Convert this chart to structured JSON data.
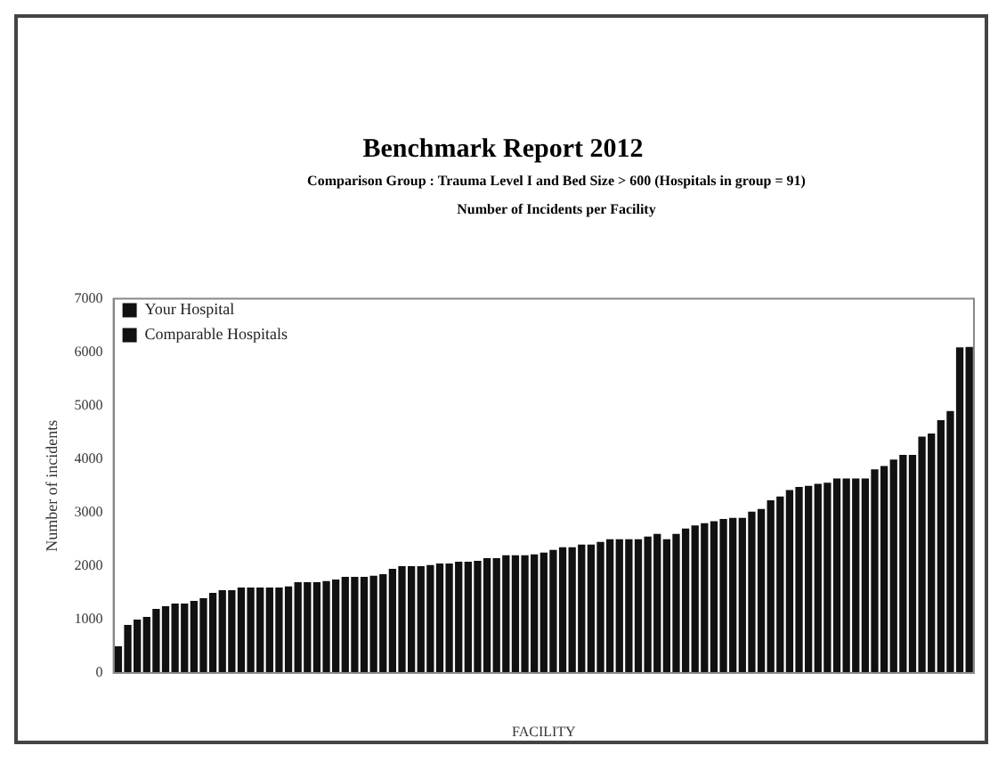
{
  "chart_data": {
    "type": "bar",
    "title": "Benchmark Report 2012",
    "subtitle": "Comparison Group :  Trauma Level I and Bed Size > 600 (Hospitals in group = 91)",
    "annotations": [
      "Number of Incidents per Facility"
    ],
    "xlabel": "FACILITY",
    "ylabel": "Number of incidents",
    "categories": [
      null,
      null,
      null,
      null,
      null,
      null,
      null,
      null,
      null,
      null,
      null,
      null,
      null,
      null,
      null,
      null,
      null,
      null,
      null,
      null,
      null,
      null,
      null,
      null,
      null,
      null,
      null,
      null,
      null,
      null,
      null,
      null,
      null,
      null,
      null,
      null,
      null,
      null,
      null,
      null,
      null,
      null,
      null,
      null,
      null,
      null,
      null,
      null,
      null,
      null,
      null,
      null,
      null,
      null,
      null,
      null,
      null,
      null,
      null,
      null,
      null,
      null,
      null,
      null,
      null,
      null,
      null,
      null,
      null,
      null,
      null,
      null,
      null,
      null,
      null,
      null,
      null,
      null,
      null,
      null,
      null,
      null,
      null,
      null,
      null,
      null,
      null,
      null,
      null,
      null,
      null
    ],
    "series": [
      {
        "name": "Your Hospital",
        "color": "#111111",
        "values": [
          null,
          null,
          null,
          null,
          null,
          null,
          null,
          null,
          null,
          null,
          null,
          null,
          null,
          null,
          null,
          null,
          null,
          null,
          null,
          null,
          null,
          null,
          null,
          null,
          null,
          null,
          null,
          null,
          null,
          null,
          null,
          2000,
          null,
          null,
          null,
          null,
          null,
          null,
          null,
          null,
          null,
          null,
          null,
          null,
          null,
          null,
          null,
          null,
          null,
          null,
          null,
          null,
          null,
          null,
          null,
          null,
          null,
          null,
          null,
          null,
          null,
          null,
          null,
          null,
          null,
          null,
          null,
          null,
          null,
          null,
          null,
          null,
          null,
          null,
          null,
          null,
          null,
          null,
          null,
          null,
          null,
          null,
          null,
          null,
          null,
          null,
          null,
          null,
          null,
          null,
          null
        ]
      },
      {
        "name": "Comparable Hospitals",
        "color": "#111111",
        "values": [
          500,
          900,
          1000,
          1050,
          1200,
          1250,
          1300,
          1300,
          1350,
          1400,
          1500,
          1550,
          1550,
          1600,
          1600,
          1600,
          1600,
          1600,
          1620,
          1700,
          1700,
          1700,
          1720,
          1750,
          1800,
          1800,
          1800,
          1820,
          1850,
          1950,
          2000,
          null,
          2000,
          2020,
          2050,
          2050,
          2080,
          2080,
          2100,
          2150,
          2150,
          2200,
          2200,
          2200,
          2220,
          2250,
          2300,
          2350,
          2350,
          2400,
          2400,
          2450,
          2500,
          2500,
          2500,
          2500,
          2550,
          2600,
          2500,
          2600,
          2700,
          2760,
          2800,
          2840,
          2880,
          2900,
          2900,
          3020,
          3070,
          3230,
          3300,
          3420,
          3480,
          3500,
          3540,
          3560,
          3640,
          3640,
          3640,
          3640,
          3810,
          3870,
          3990,
          4080,
          4080,
          4420,
          4480,
          4730,
          4900,
          6090,
          6100
        ]
      }
    ],
    "ylim": [
      0,
      7000
    ],
    "yticks": [
      0,
      1000,
      2000,
      3000,
      4000,
      5000,
      6000,
      7000
    ],
    "grid": false,
    "legend": "top left",
    "stacked": true
  }
}
